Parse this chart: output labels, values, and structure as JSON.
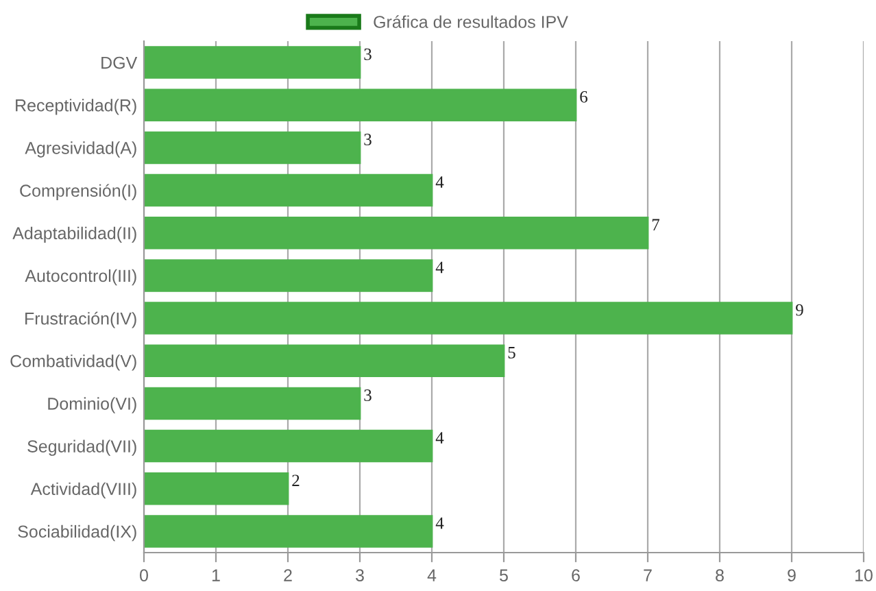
{
  "chart_data": {
    "type": "bar",
    "orientation": "horizontal",
    "categories": [
      "DGV",
      "Receptividad(R)",
      "Agresividad(A)",
      "Comprensión(I)",
      "Adaptabilidad(II)",
      "Autocontrol(III)",
      "Frustración(IV)",
      "Combatividad(V)",
      "Dominio(VI)",
      "Seguridad(VII)",
      "Actividad(VIII)",
      "Sociabilidad(IX)"
    ],
    "series": [
      {
        "name": "Gráfica de resultados IPV",
        "color": "#4db34d",
        "values": [
          3,
          6,
          3,
          4,
          7,
          4,
          9,
          5,
          3,
          4,
          2,
          4
        ]
      }
    ],
    "xlim": [
      0,
      10
    ],
    "xticks": [
      0,
      1,
      2,
      3,
      4,
      5,
      6,
      7,
      8,
      9,
      10
    ],
    "grid": "x",
    "legend": "top",
    "data_labels": true
  }
}
